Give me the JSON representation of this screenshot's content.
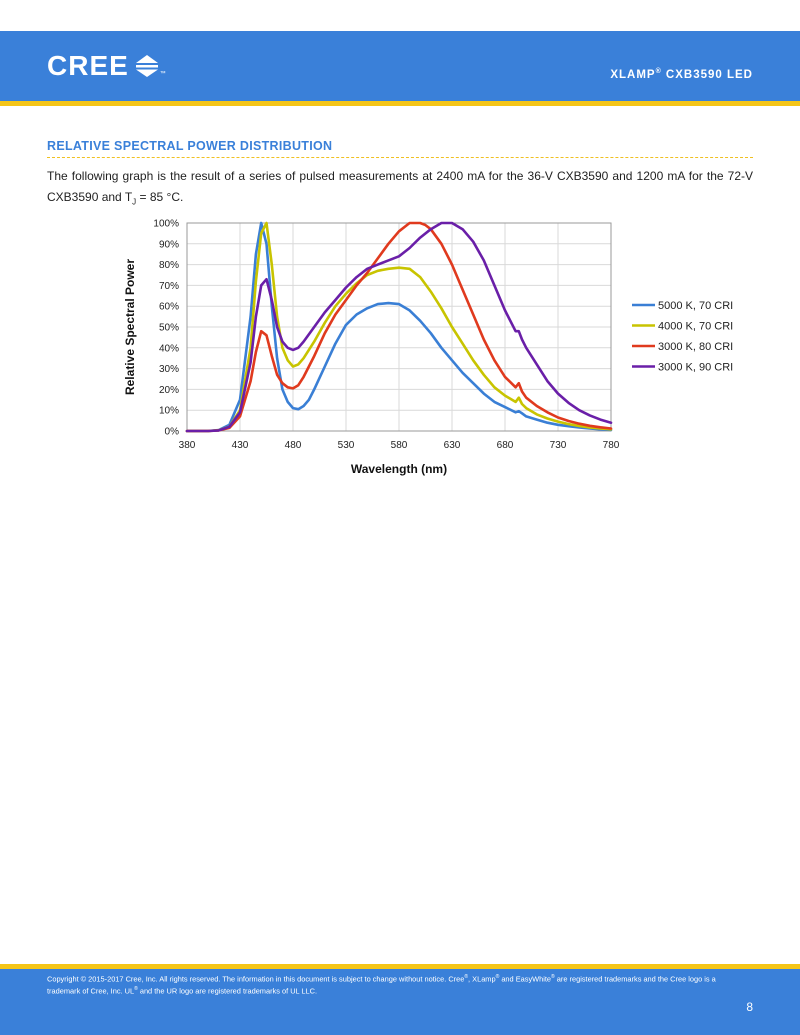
{
  "header": {
    "brand": "CREE",
    "trademark": "™",
    "product_prefix": "XLAMP",
    "product_reg": "®",
    "product_suffix": " CXB3590 LED"
  },
  "section": {
    "title": "RELATIVE SPECTRAL POWER DISTRIBUTION",
    "intro_part1": "The following graph is the result of a series of pulsed measurements at 2400 mA for the 36-V CXB3590 and 1200 mA for the 72-V CXB3590 and T",
    "intro_sub": "J",
    "intro_part2": " = 85 °C."
  },
  "colors": {
    "brand_blue": "#3a80d9",
    "brand_yellow": "#f5c518"
  },
  "chart_data": {
    "type": "line",
    "title": "",
    "xlabel": "Wavelength (nm)",
    "ylabel": "Relative Spectral Power",
    "xlim": [
      380,
      780
    ],
    "ylim": [
      0,
      100
    ],
    "x_ticks": [
      380,
      430,
      480,
      530,
      580,
      630,
      680,
      730,
      780
    ],
    "y_ticks": [
      0,
      10,
      20,
      30,
      40,
      50,
      60,
      70,
      80,
      90,
      100
    ],
    "y_tick_labels": [
      "0%",
      "10%",
      "20%",
      "30%",
      "40%",
      "50%",
      "60%",
      "70%",
      "80%",
      "90%",
      "100%"
    ],
    "grid": true,
    "legend_position": "right",
    "series": [
      {
        "name": "5000 K, 70 CRI",
        "color": "#3a7fd5",
        "x": [
          380,
          400,
          410,
          420,
          430,
          440,
          445,
          450,
          455,
          460,
          465,
          470,
          475,
          480,
          485,
          490,
          495,
          500,
          510,
          520,
          530,
          540,
          550,
          560,
          570,
          580,
          590,
          600,
          610,
          620,
          630,
          640,
          650,
          660,
          670,
          680,
          690,
          693,
          696,
          700,
          710,
          720,
          730,
          740,
          750,
          760,
          770,
          780
        ],
        "values": [
          0,
          0,
          0.5,
          3,
          15,
          55,
          85,
          100,
          90,
          60,
          35,
          20,
          14,
          11,
          10.5,
          12,
          15,
          20,
          31,
          42,
          51,
          56,
          59,
          61,
          61.5,
          61,
          58,
          53,
          47,
          40,
          34,
          28,
          23,
          18,
          14,
          11.5,
          9,
          9.5,
          8.5,
          7,
          5.5,
          4,
          3,
          2.3,
          1.7,
          1.2,
          0.8,
          0.5
        ]
      },
      {
        "name": "4000 K, 70 CRI",
        "color": "#c8c400",
        "x": [
          380,
          400,
          410,
          420,
          430,
          440,
          445,
          450,
          455,
          460,
          465,
          470,
          475,
          480,
          485,
          490,
          500,
          510,
          520,
          530,
          540,
          550,
          560,
          570,
          580,
          590,
          600,
          610,
          620,
          630,
          640,
          650,
          660,
          670,
          680,
          690,
          693,
          696,
          700,
          710,
          720,
          730,
          740,
          750,
          760,
          770,
          780
        ],
        "values": [
          0,
          0,
          0.4,
          2,
          10,
          40,
          72,
          95,
          100,
          80,
          55,
          40,
          34,
          31,
          32,
          35,
          43,
          52,
          60,
          66,
          71,
          75,
          77,
          78,
          78.5,
          78,
          74,
          67,
          59,
          50,
          42,
          34,
          27,
          21,
          17,
          14,
          16,
          13,
          11,
          8,
          6,
          4.5,
          3.3,
          2.4,
          1.7,
          1.2,
          0.8
        ]
      },
      {
        "name": "3000 K, 80 CRI",
        "color": "#e03a1e",
        "x": [
          380,
          400,
          410,
          420,
          430,
          440,
          445,
          450,
          455,
          460,
          465,
          470,
          475,
          480,
          485,
          490,
          500,
          510,
          520,
          530,
          540,
          550,
          560,
          570,
          580,
          590,
          600,
          605,
          610,
          620,
          630,
          640,
          650,
          660,
          670,
          680,
          690,
          693,
          696,
          700,
          710,
          720,
          730,
          740,
          750,
          760,
          770,
          780
        ],
        "values": [
          0,
          0,
          0.3,
          1.5,
          7,
          24,
          38,
          48,
          46,
          36,
          27,
          23,
          21,
          20.5,
          22,
          26,
          36,
          47,
          56,
          63,
          70,
          76,
          83,
          90,
          96,
          100,
          100,
          99,
          97,
          90,
          80,
          68,
          56,
          44,
          34,
          26,
          21,
          23,
          19,
          16,
          12,
          9,
          6.5,
          4.8,
          3.5,
          2.5,
          1.8,
          1.2
        ]
      },
      {
        "name": "3000 K, 90 CRI",
        "color": "#6a1fa8",
        "x": [
          380,
          400,
          410,
          420,
          430,
          440,
          445,
          450,
          455,
          460,
          465,
          470,
          475,
          480,
          485,
          490,
          500,
          510,
          520,
          530,
          540,
          550,
          560,
          570,
          580,
          590,
          600,
          610,
          620,
          630,
          640,
          650,
          660,
          670,
          680,
          690,
          693,
          696,
          700,
          710,
          720,
          730,
          740,
          750,
          760,
          770,
          780
        ],
        "values": [
          0,
          0,
          0.3,
          2,
          9,
          33,
          55,
          70,
          73,
          63,
          50,
          43,
          40,
          39,
          40,
          43,
          50,
          57,
          63,
          69,
          74,
          78,
          80,
          82,
          84,
          88,
          93,
          97,
          100,
          100,
          97,
          91,
          82,
          70,
          58,
          48,
          48,
          44,
          40,
          32,
          24,
          18,
          13.5,
          10,
          7.5,
          5.5,
          4
        ]
      }
    ]
  },
  "footer": {
    "copyright_line1_a": "Copyright © 2015-2017 Cree, Inc. All rights reserved. The information in this document is subject to change without notice. Cree",
    "copyright_line1_b": ", XLamp",
    "copyright_line1_c": " and EasyWhite",
    "copyright_line1_d": " are registered trademarks and the Cree logo is a",
    "copyright_line2_a": "trademark of Cree, Inc. UL",
    "copyright_line2_b": " and the UR logo are registered trademarks of UL LLC.",
    "reg": "®",
    "page_number": "8"
  }
}
